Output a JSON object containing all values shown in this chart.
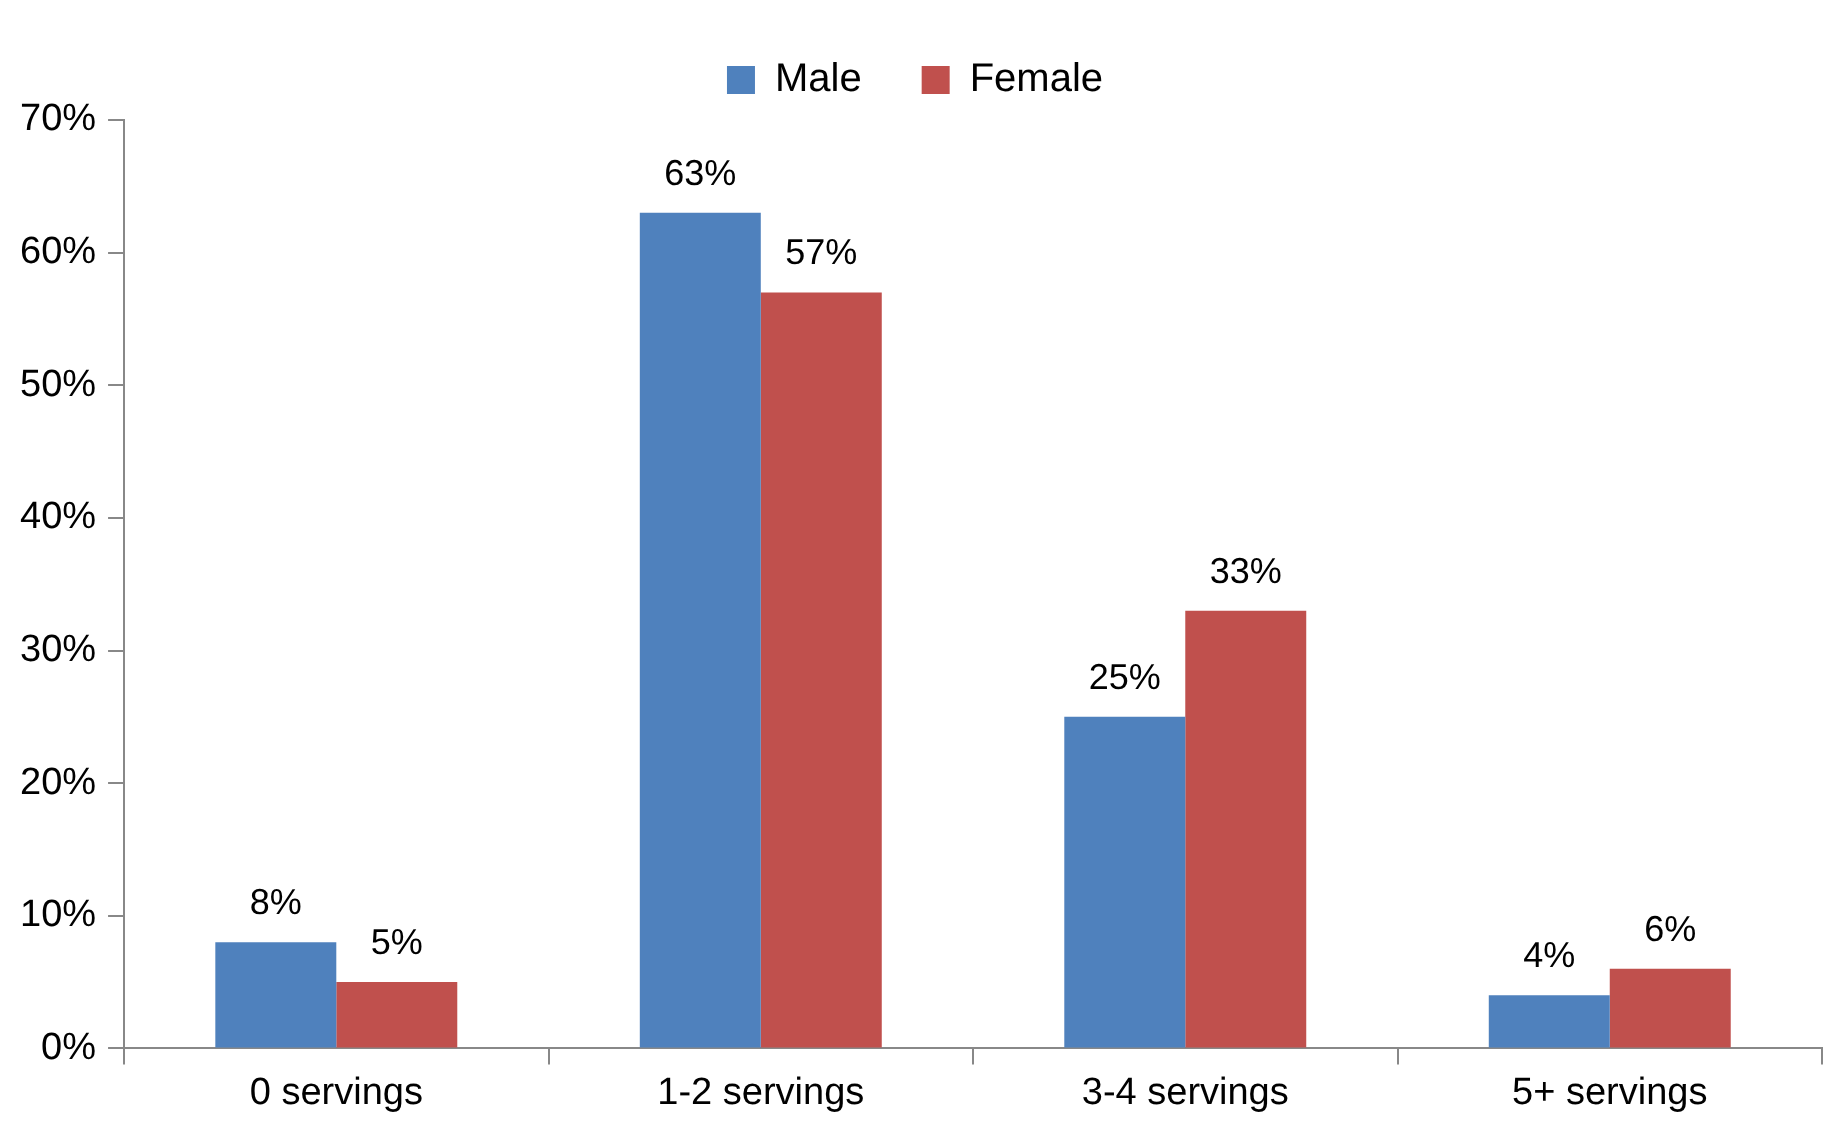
{
  "chart_data": {
    "type": "bar",
    "categories": [
      "0 servings",
      "1-2 servings",
      "3-4 servings",
      "5+ servings"
    ],
    "series": [
      {
        "name": "Male",
        "color": "#4f81bd",
        "values": [
          8,
          63,
          25,
          4
        ],
        "value_labels": [
          "8%",
          "63%",
          "25%",
          "4%"
        ]
      },
      {
        "name": "Female",
        "color": "#c0504d",
        "values": [
          5,
          57,
          33,
          6
        ],
        "value_labels": [
          "5%",
          "57%",
          "33%",
          "6%"
        ]
      }
    ],
    "ylim": [
      0,
      70
    ],
    "yticks": [
      {
        "value": 0,
        "label": "0%"
      },
      {
        "value": 10,
        "label": "10%"
      },
      {
        "value": 20,
        "label": "20%"
      },
      {
        "value": 30,
        "label": "30%"
      },
      {
        "value": 40,
        "label": "40%"
      },
      {
        "value": 50,
        "label": "50%"
      },
      {
        "value": 60,
        "label": "60%"
      },
      {
        "value": 70,
        "label": "70%"
      }
    ],
    "legend": "top"
  }
}
